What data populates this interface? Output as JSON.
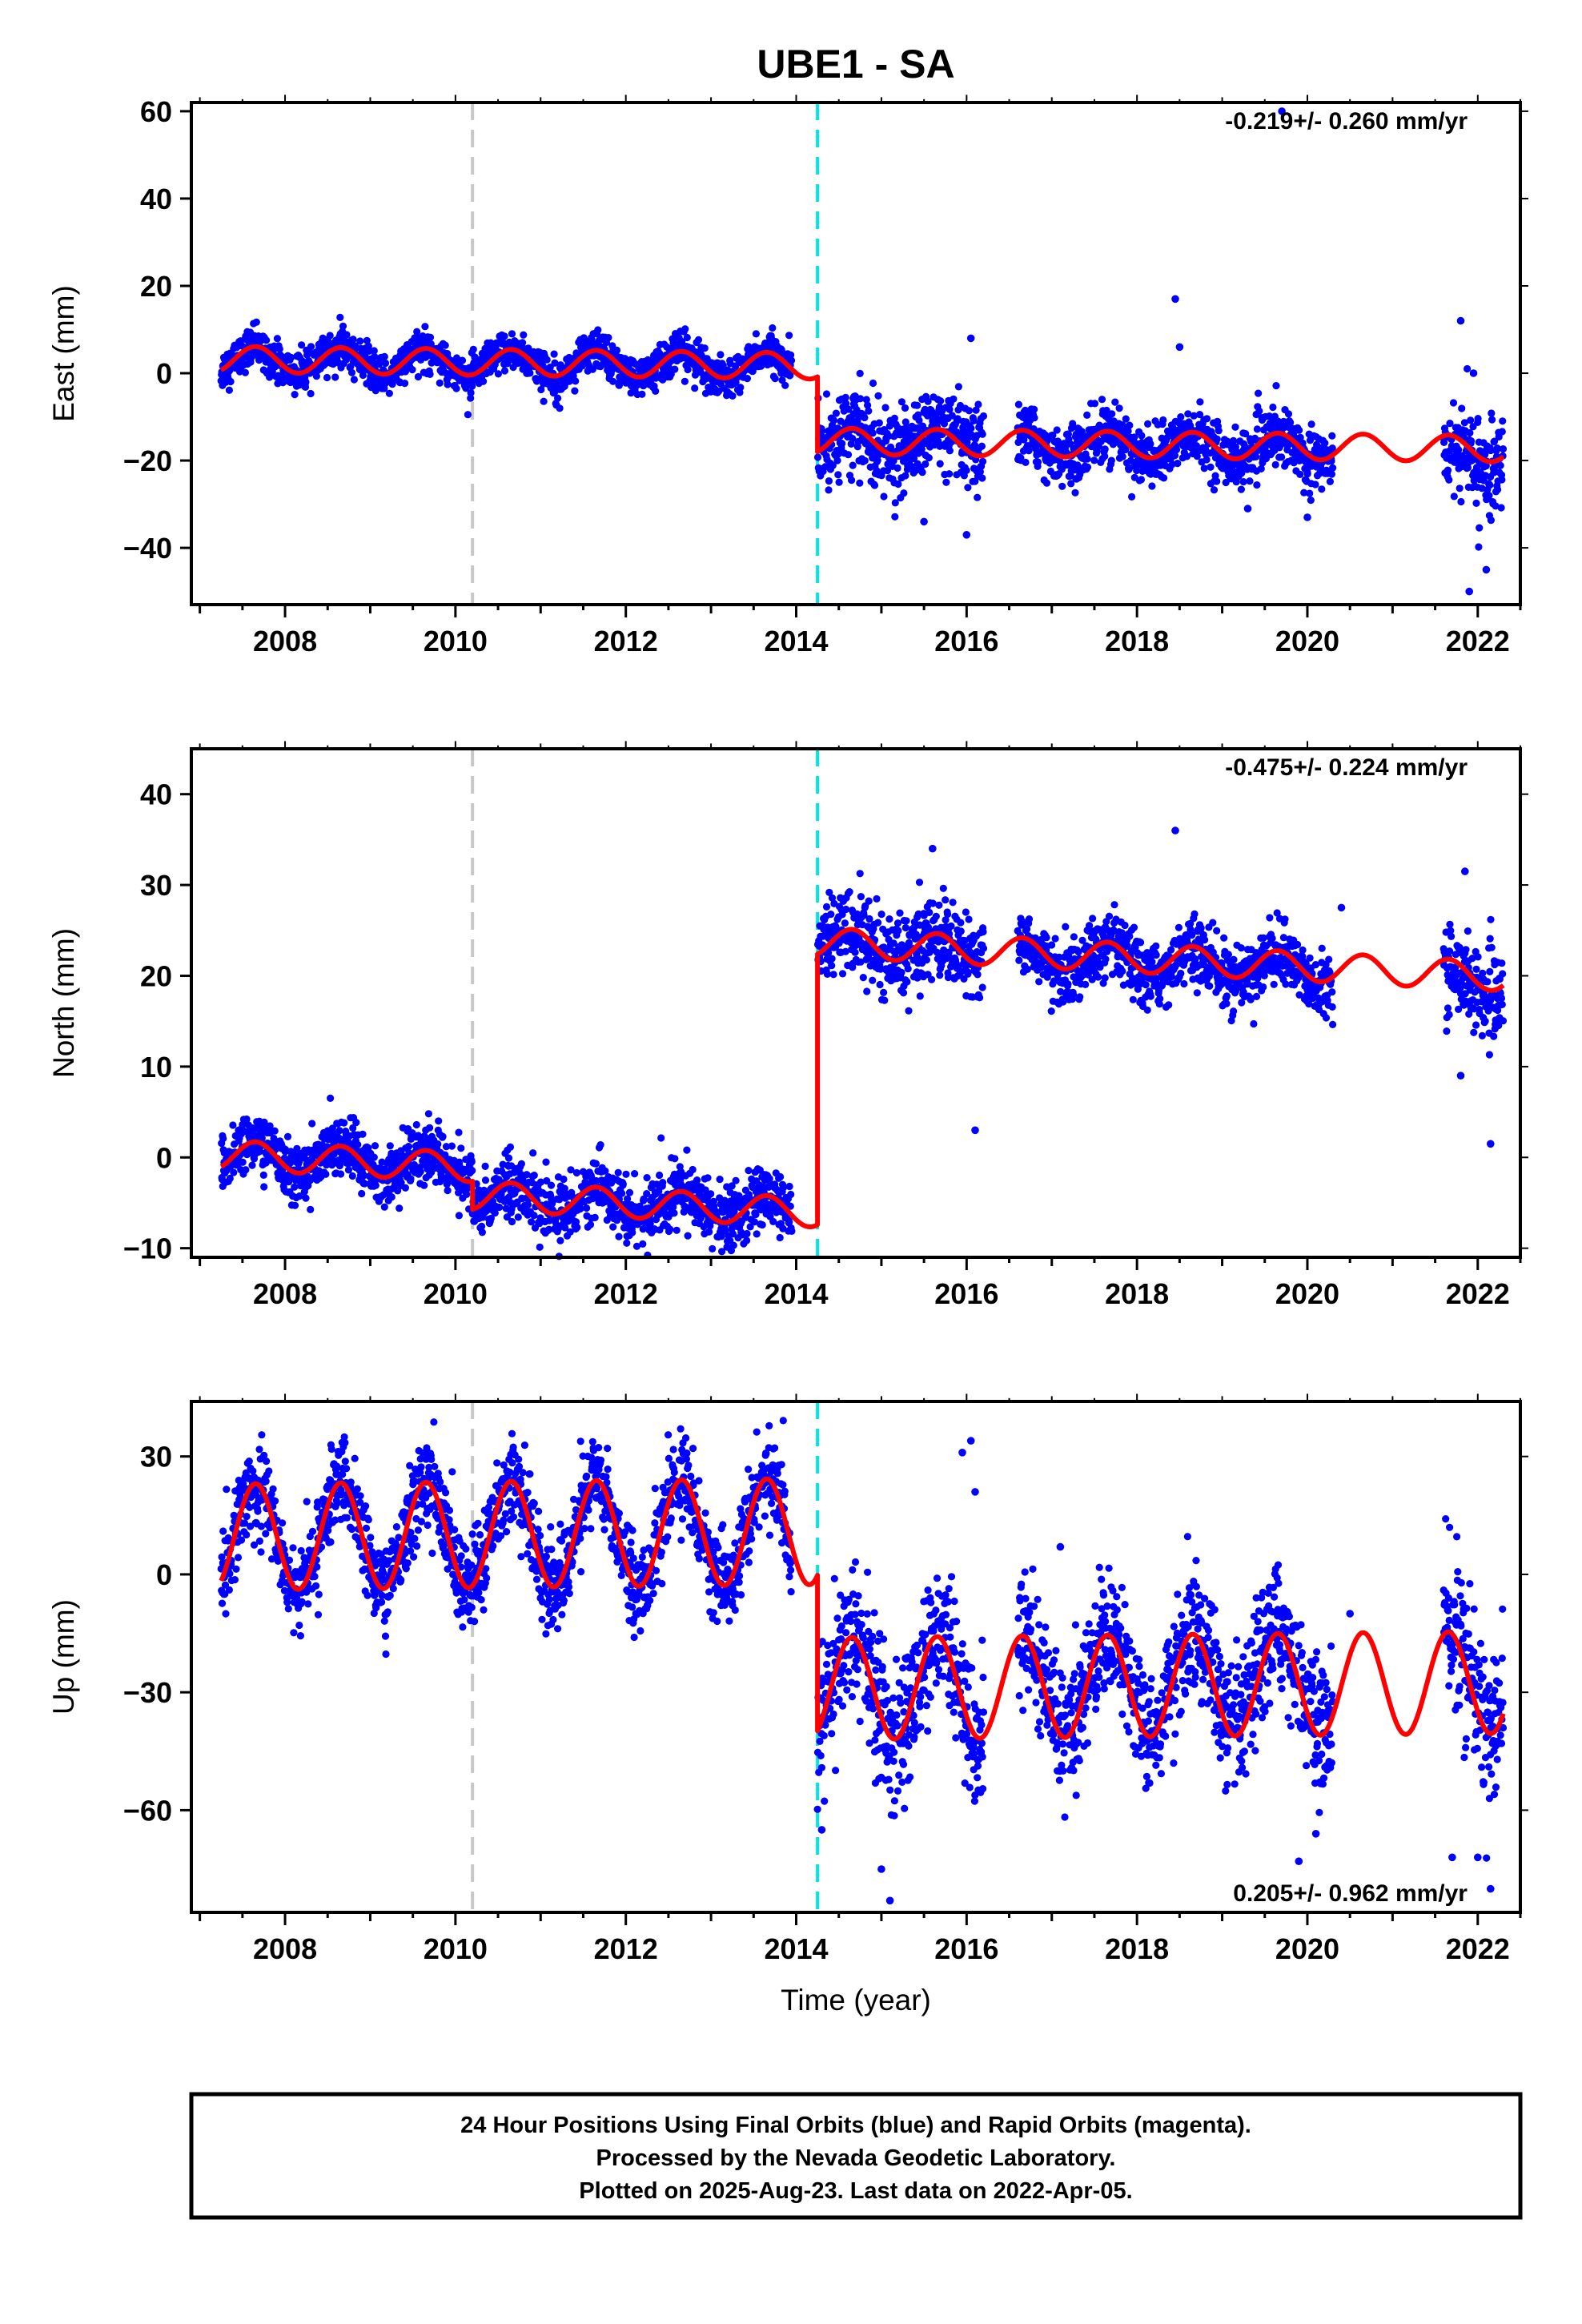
{
  "title": "UBE1 - SA",
  "footer": {
    "lines": [
      "24 Hour Positions Using Final Orbits (blue) and Rapid Orbits (magenta).",
      "Processed by the Nevada Geodetic Laboratory.",
      "Plotted on 2025-Aug-23. Last data on 2022-Apr-05."
    ]
  },
  "colors": {
    "data": "#0000ff",
    "model": "#ff0000",
    "equipment_change": "#c8c8c8",
    "earthquake": "#00e5e5",
    "frame": "#000000"
  },
  "chart_data": [
    {
      "type": "scatter",
      "title": "",
      "xlabel": "",
      "ylabel": "East (mm)",
      "xlim": [
        2006.9,
        2022.5
      ],
      "ylim": [
        -53,
        62
      ],
      "xticks": [
        2008,
        2010,
        2012,
        2014,
        2016,
        2018,
        2020,
        2022
      ],
      "yticks": [
        -40,
        -20,
        0,
        20,
        40,
        60
      ],
      "rate_label": "-0.219+/- 0.260 mm/yr",
      "rate_label_position": "top-right",
      "vertical_lines": [
        {
          "x": 2010.2,
          "style": "dashed",
          "color": "#c8c8c8"
        },
        {
          "x": 2014.25,
          "style": "dashed",
          "color": "#00e5e5"
        }
      ],
      "data_segments": [
        {
          "x_start": 2007.25,
          "x_end": 2013.95,
          "offset": 3.0,
          "trend": -0.22,
          "amplitude": 3.0,
          "scatter": 2.2
        },
        {
          "x_start": 2014.25,
          "x_end": 2016.2,
          "offset": -14.0,
          "trend": -0.22,
          "amplitude": 3.0,
          "scatter": 4.5
        },
        {
          "x_start": 2016.6,
          "x_end": 2020.3,
          "offset": -14.5,
          "trend": -0.22,
          "amplitude": 3.0,
          "scatter": 3.2
        },
        {
          "x_start": 2021.6,
          "x_end": 2022.3,
          "offset": -16.0,
          "trend": -0.22,
          "amplitude": 3.0,
          "scatter": 5.5
        }
      ],
      "outliers": [
        [
          2016.05,
          8
        ],
        [
          2018.45,
          17
        ],
        [
          2018.5,
          6
        ],
        [
          2021.8,
          12
        ],
        [
          2021.95,
          0
        ],
        [
          2022.1,
          -45
        ],
        [
          2021.9,
          -50
        ],
        [
          2016.0,
          -37
        ],
        [
          2019.3,
          -31
        ],
        [
          2020.0,
          -33
        ],
        [
          2015.5,
          -34
        ],
        [
          2019.7,
          60
        ]
      ],
      "model_segments": [
        {
          "x_start": 2007.25,
          "x_end": 2014.25,
          "offset": 3.2,
          "trend": -0.22,
          "amplitude": 3.0
        },
        {
          "x_start": 2014.25,
          "x_end": 2022.3,
          "offset": -14.0,
          "trend": -0.22,
          "amplitude": 3.0
        }
      ]
    },
    {
      "type": "scatter",
      "title": "",
      "xlabel": "",
      "ylabel": "North (mm)",
      "xlim": [
        2006.9,
        2022.5
      ],
      "ylim": [
        -11,
        45
      ],
      "xticks": [
        2008,
        2010,
        2012,
        2014,
        2016,
        2018,
        2020,
        2022
      ],
      "yticks": [
        -10,
        0,
        10,
        20,
        30,
        40
      ],
      "rate_label": "-0.475+/- 0.224 mm/yr",
      "rate_label_position": "top-right",
      "vertical_lines": [
        {
          "x": 2010.2,
          "style": "dashed",
          "color": "#c8c8c8"
        },
        {
          "x": 2014.25,
          "style": "dashed",
          "color": "#00e5e5"
        }
      ],
      "data_segments": [
        {
          "x_start": 2007.25,
          "x_end": 2010.2,
          "offset": 0.3,
          "trend": -0.47,
          "amplitude": 1.6,
          "scatter": 1.5
        },
        {
          "x_start": 2010.2,
          "x_end": 2013.95,
          "offset": -2.8,
          "trend": -0.47,
          "amplitude": 1.6,
          "scatter": 1.7
        },
        {
          "x_start": 2014.25,
          "x_end": 2016.2,
          "offset": 27.0,
          "trend": -0.47,
          "amplitude": 1.6,
          "scatter": 2.3
        },
        {
          "x_start": 2016.6,
          "x_end": 2020.3,
          "offset": 26.5,
          "trend": -0.47,
          "amplitude": 1.6,
          "scatter": 1.7
        },
        {
          "x_start": 2021.6,
          "x_end": 2022.3,
          "offset": 26.0,
          "trend": -0.47,
          "amplitude": 1.6,
          "scatter": 2.3
        }
      ],
      "outliers": [
        [
          2016.1,
          3
        ],
        [
          2018.45,
          36
        ],
        [
          2021.8,
          9
        ],
        [
          2022.15,
          1.5
        ],
        [
          2021.85,
          31.5
        ],
        [
          2015.6,
          34
        ],
        [
          2020.4,
          27.5
        ]
      ],
      "model_segments": [
        {
          "x_start": 2007.25,
          "x_end": 2010.2,
          "offset": 0.3,
          "trend": -0.47,
          "amplitude": 1.6
        },
        {
          "x_start": 2010.2,
          "x_end": 2014.25,
          "offset": -2.8,
          "trend": -0.47,
          "amplitude": 1.6
        },
        {
          "x_start": 2014.25,
          "x_end": 2022.3,
          "offset": 27.0,
          "trend": -0.47,
          "amplitude": 1.6
        }
      ]
    },
    {
      "type": "scatter",
      "title": "",
      "xlabel": "Time (year)",
      "ylabel": "Up (mm)",
      "xlim": [
        2006.9,
        2022.5
      ],
      "ylim": [
        -86,
        44
      ],
      "xticks": [
        2008,
        2010,
        2012,
        2014,
        2016,
        2018,
        2020,
        2022
      ],
      "yticks": [
        -60,
        -30,
        0,
        30
      ],
      "rate_label": "0.205+/- 0.962 mm/yr",
      "rate_label_position": "bottom-right",
      "vertical_lines": [
        {
          "x": 2010.2,
          "style": "dashed",
          "color": "#c8c8c8"
        },
        {
          "x": 2014.25,
          "style": "dashed",
          "color": "#00e5e5"
        }
      ],
      "data_segments": [
        {
          "x_start": 2007.25,
          "x_end": 2013.95,
          "offset": 9.5,
          "trend": 0.2,
          "amplitude": 13.5,
          "scatter": 5.5
        },
        {
          "x_start": 2014.25,
          "x_end": 2016.2,
          "offset": -31.0,
          "trend": 0.2,
          "amplitude": 13.0,
          "scatter": 9.0
        },
        {
          "x_start": 2016.6,
          "x_end": 2020.3,
          "offset": -29.0,
          "trend": 0.2,
          "amplitude": 13.0,
          "scatter": 8.0
        },
        {
          "x_start": 2021.6,
          "x_end": 2022.3,
          "offset": -29.0,
          "trend": 0.2,
          "amplitude": 13.0,
          "scatter": 10.0
        }
      ],
      "outliers": [
        [
          2015.0,
          -75
        ],
        [
          2015.1,
          -83
        ],
        [
          2016.05,
          34
        ],
        [
          2015.95,
          31
        ],
        [
          2021.7,
          -72
        ],
        [
          2022.0,
          -72
        ],
        [
          2022.15,
          -80
        ],
        [
          2020.1,
          -66
        ],
        [
          2019.9,
          -73
        ],
        [
          2017.1,
          7
        ],
        [
          2020.5,
          -10
        ],
        [
          2016.1,
          21
        ],
        [
          2014.3,
          -65
        ]
      ],
      "model_segments": [
        {
          "x_start": 2007.25,
          "x_end": 2014.25,
          "offset": 9.5,
          "trend": 0.2,
          "amplitude": 13.5
        },
        {
          "x_start": 2014.25,
          "x_end": 2022.3,
          "offset": -30.5,
          "trend": 0.2,
          "amplitude": 13.0
        }
      ]
    }
  ]
}
